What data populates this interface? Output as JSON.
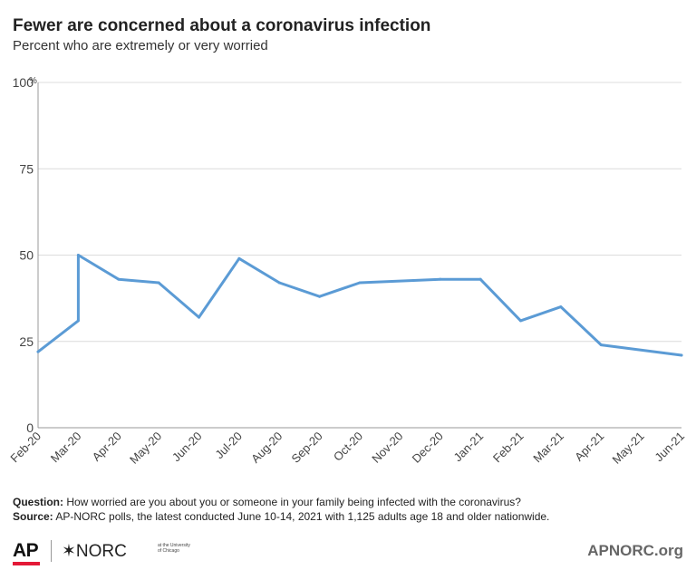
{
  "header": {
    "title": "Fewer are concerned about a coronavirus infection",
    "subtitle": "Percent who are extremely or very worried"
  },
  "chart_data": {
    "type": "line",
    "title": "Fewer are concerned about a coronavirus infection",
    "subtitle": "Percent who are extremely or very worried",
    "xlabel": "",
    "ylabel": "",
    "ylim": [
      0,
      100
    ],
    "y_ticks": [
      0,
      25,
      50,
      75,
      100
    ],
    "y_tick_labels": [
      "0",
      "25",
      "50",
      "75",
      "100"
    ],
    "y_unit": "%",
    "x_ticks": [
      "Feb-20",
      "Mar-20",
      "Apr-20",
      "May-20",
      "Jun-20",
      "Jul-20",
      "Aug-20",
      "Sep-20",
      "Oct-20",
      "Nov-20",
      "Dec-20",
      "Jan-21",
      "Feb-21",
      "Mar-21",
      "Apr-21",
      "May-21",
      "Jun-21"
    ],
    "grid": true,
    "line_color": "#5b9bd5",
    "series": [
      {
        "x": [
          "2020-02-01",
          "2020-03-01",
          "2020-03-01",
          "2020-04-01",
          "2020-05-01",
          "2020-06-01",
          "2020-07-01",
          "2020-08-01",
          "2020-09-01",
          "2020-10-01",
          "2020-12-01",
          "2021-01-01",
          "2021-02-01",
          "2021-03-01",
          "2021-04-01",
          "2021-06-01"
        ],
        "values": [
          22,
          31,
          50,
          43,
          42,
          32,
          49,
          42,
          38,
          42,
          43,
          43,
          31,
          35,
          24,
          21
        ]
      }
    ]
  },
  "footer": {
    "question_label": "Question:",
    "question_text": " How worried are you about you or someone in your family being infected with the coronavirus?",
    "source_label": "Source:",
    "source_text": "  AP-NORC polls, the latest conducted June 10-14, 2021 with 1,125 adults age 18 and older nationwide.",
    "ap_logo": "AP",
    "norc_logo": "✶NORC",
    "norc_sub": "at the University of Chicago",
    "site": "APNORC.org",
    "accent_color": "#e31937"
  }
}
